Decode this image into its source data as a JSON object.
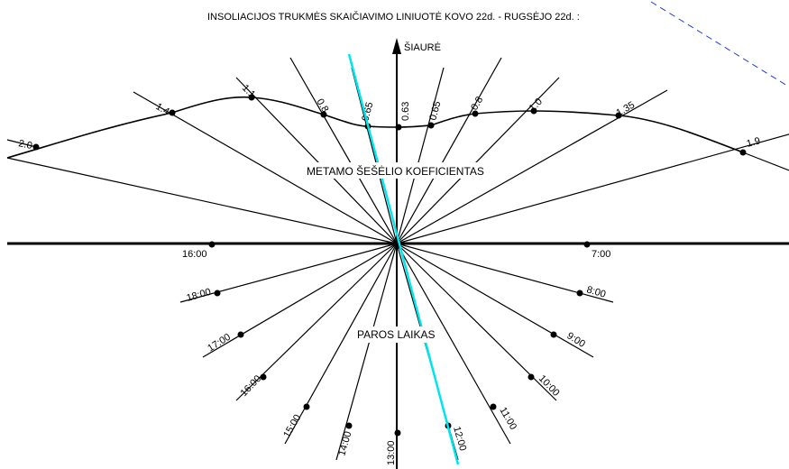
{
  "title": "INSOLIACIJOS TRUKMĖS SKAIČIAVIMO LINIUOTĖ KOVO 22d. - RUGSĖJO 22d. :",
  "north_label": "ŠIAURĖ",
  "shadow_label": "METAMO ŠEŠĖLIO KOEFICIENTAS",
  "time_label": "PAROS LAIKAS",
  "shadow_coefficients": [
    "2.0",
    "1.4",
    "1.1",
    "0.8",
    "0.65",
    "0.63",
    "0.65",
    "0.8",
    "1.0",
    "1.35",
    "1.9"
  ],
  "hours": [
    "7:00",
    "8:00",
    "9:00",
    "10:00",
    "11:00",
    "12:00",
    "13:00",
    "14:00",
    "15:00",
    "16:00",
    "17:00",
    "18:00",
    "16:00"
  ],
  "colors": {
    "lines": "#000000",
    "highlight": "#00e5ee",
    "dashed": "#1f3fd6"
  }
}
